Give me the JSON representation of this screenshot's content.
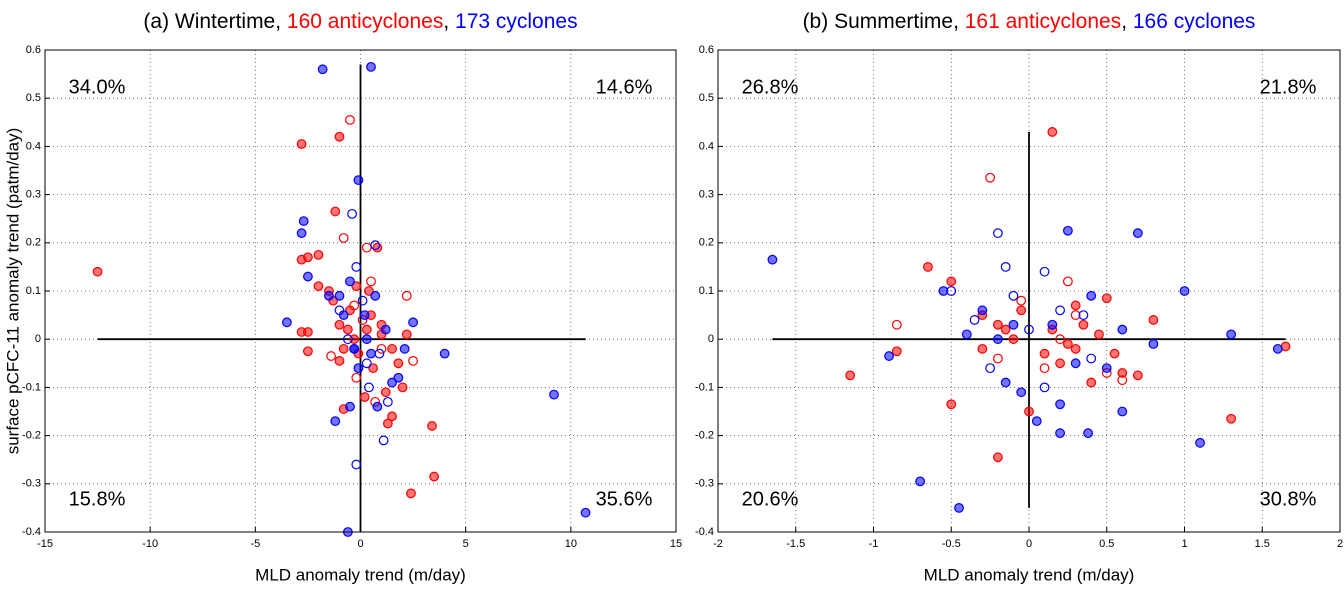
{
  "chart_data": [
    {
      "type": "scatter",
      "title": [
        {
          "text": "(a) Wintertime, ",
          "color": "#000000"
        },
        {
          "text": "160 anticyclones",
          "color": "#ff0000"
        },
        {
          "text": ", ",
          "color": "#000000"
        },
        {
          "text": "173 cyclones",
          "color": "#0000ff"
        }
      ],
      "x_label": "MLD anomaly trend (m/day)",
      "y_label": "surface pCFC-11 anomaly trend (patm/day)",
      "xlim": [
        -15,
        15
      ],
      "xticks": [
        -15,
        -10,
        -5,
        0,
        5,
        10,
        15
      ],
      "ylim": [
        -0.4,
        0.6
      ],
      "yticks": [
        -0.4,
        -0.3,
        -0.2,
        -0.1,
        0,
        0.1,
        0.2,
        0.3,
        0.4,
        0.5,
        0.6
      ],
      "grid": true,
      "cross_x": [
        -12.5,
        10.7
      ],
      "cross_y": [
        -0.4,
        0.57
      ],
      "annotations": [
        {
          "text": "34.0%",
          "position": "top-left"
        },
        {
          "text": "14.6%",
          "position": "top-right"
        },
        {
          "text": "15.8%",
          "position": "bottom-left"
        },
        {
          "text": "35.6%",
          "position": "bottom-right"
        }
      ],
      "series": [
        {
          "color": "#ff0000",
          "filled": true,
          "x": [
            -12.5,
            -1,
            -2.8,
            -1.2,
            -2.5,
            -2.8,
            -2,
            -2,
            -1.5,
            -1.3,
            -2.5,
            -2.8,
            -2.5,
            -1,
            -0.5,
            -0.8,
            -1,
            -0.8,
            -0.3,
            0.3,
            0.5,
            0.8,
            1,
            1.5,
            1.8,
            1.2,
            1.5,
            1.3,
            2.4,
            3.4,
            3.5,
            2,
            0.2,
            -0.2,
            0.6,
            1,
            -0.6,
            0.4,
            -0.1,
            2.2
          ],
          "values": [
            0.14,
            0.42,
            0.405,
            0.265,
            0.17,
            0.165,
            0.175,
            0.11,
            0.1,
            0.08,
            0.015,
            0.015,
            -0.025,
            0.03,
            0.06,
            -0.02,
            -0.045,
            -0.145,
            0,
            0.02,
            0.05,
            0.19,
            0.03,
            -0.02,
            -0.05,
            -0.11,
            -0.16,
            -0.175,
            -0.32,
            -0.18,
            -0.285,
            -0.1,
            -0.12,
            0.11,
            -0.06,
            0.01,
            0.02,
            0.1,
            -0.03,
            0.01
          ]
        },
        {
          "color": "#ff0000",
          "filled": false,
          "x": [
            -0.5,
            -0.8,
            0.3,
            2.2,
            -1.4,
            2.5,
            0.5,
            -0.3,
            0.7,
            1,
            -0.2,
            0.1
          ],
          "values": [
            0.455,
            0.21,
            0.19,
            0.09,
            -0.035,
            -0.045,
            0.12,
            0.07,
            -0.13,
            -0.02,
            -0.08,
            0.04
          ]
        },
        {
          "color": "#0000ff",
          "filled": true,
          "x": [
            -1.8,
            0.5,
            -0.1,
            -2.7,
            -2.8,
            -2.5,
            -3.5,
            -1.5,
            -1,
            -0.5,
            0.2,
            -0.3,
            0.5,
            1.2,
            2.5,
            2.1,
            4,
            1.8,
            -1.2,
            -0.5,
            0.8,
            9.2,
            10.7,
            -0.6,
            -0.3,
            0.3,
            -0.8,
            1.5,
            0.7,
            -0.1
          ],
          "values": [
            0.56,
            0.565,
            0.33,
            0.245,
            0.22,
            0.13,
            0.035,
            0.09,
            0.09,
            0.12,
            0.05,
            -0.02,
            -0.03,
            0.02,
            0.035,
            -0.02,
            -0.03,
            -0.08,
            -0.17,
            -0.14,
            -0.14,
            -0.115,
            -0.36,
            -0.4,
            -0.02,
            0,
            0.05,
            -0.09,
            0.09,
            -0.06
          ]
        },
        {
          "color": "#0000ff",
          "filled": false,
          "x": [
            -0.4,
            0.7,
            -0.2,
            1.1,
            -1,
            0.3,
            0.9,
            -0.6,
            0.1,
            1.3,
            -0.2,
            0.4
          ],
          "values": [
            0.26,
            0.195,
            -0.26,
            -0.21,
            0.06,
            -0.05,
            -0.03,
            0,
            0.08,
            -0.13,
            0.15,
            -0.1
          ]
        }
      ]
    },
    {
      "type": "scatter",
      "title": [
        {
          "text": "(b) Summertime, ",
          "color": "#000000"
        },
        {
          "text": "161 anticyclones",
          "color": "#ff0000"
        },
        {
          "text": ", ",
          "color": "#000000"
        },
        {
          "text": "166 cyclones",
          "color": "#0000ff"
        }
      ],
      "x_label": "MLD anomaly trend (m/day)",
      "xlim": [
        -2,
        2
      ],
      "xticks": [
        -2,
        -1.5,
        -1,
        -0.5,
        0,
        0.5,
        1,
        1.5,
        2
      ],
      "ylim": [
        -0.4,
        0.6
      ],
      "yticks": [
        -0.4,
        -0.3,
        -0.2,
        -0.1,
        0,
        0.1,
        0.2,
        0.3,
        0.4,
        0.5,
        0.6
      ],
      "grid": true,
      "cross_x": [
        -1.65,
        1.65
      ],
      "cross_y": [
        -0.35,
        0.43
      ],
      "annotations": [
        {
          "text": "26.8%",
          "position": "top-left"
        },
        {
          "text": "21.8%",
          "position": "top-right"
        },
        {
          "text": "20.6%",
          "position": "bottom-left"
        },
        {
          "text": "30.8%",
          "position": "bottom-right"
        }
      ],
      "series": [
        {
          "color": "#ff0000",
          "filled": true,
          "x": [
            0.15,
            -0.5,
            -0.65,
            -1.15,
            -0.85,
            -0.5,
            -0.2,
            1.3,
            1.65,
            0.5,
            0.3,
            -0.3,
            -0.2,
            0.1,
            0.2,
            0.4,
            0.6,
            0.7,
            0.8,
            0.3,
            -0.1,
            0,
            -0.3,
            0.15,
            -0.15,
            0.45,
            -0.05,
            0.25,
            0.35,
            0.55
          ],
          "values": [
            0.43,
            0.12,
            0.15,
            -0.075,
            -0.025,
            -0.135,
            -0.245,
            -0.165,
            -0.015,
            0.085,
            0.07,
            0.05,
            0.03,
            -0.03,
            -0.05,
            -0.09,
            -0.07,
            -0.075,
            0.04,
            -0.02,
            0,
            -0.15,
            -0.02,
            0.02,
            0.02,
            0.01,
            0.06,
            -0.01,
            0.03,
            -0.03
          ]
        },
        {
          "color": "#ff0000",
          "filled": false,
          "x": [
            -0.85,
            -0.25,
            0.25,
            0.5,
            0.6,
            -0.05,
            0.1,
            0.3,
            -0.2,
            0.2
          ],
          "values": [
            0.03,
            0.335,
            0.12,
            -0.07,
            -0.085,
            0.08,
            -0.06,
            0.05,
            -0.04,
            0
          ]
        },
        {
          "color": "#0000ff",
          "filled": true,
          "x": [
            -1.65,
            -0.55,
            -0.9,
            -0.7,
            -0.45,
            0.25,
            0.7,
            1,
            1.3,
            1.6,
            1.1,
            0.6,
            0.38,
            0.2,
            0.05,
            -0.15,
            -0.3,
            -0.4,
            0.4,
            0.5,
            0.8,
            0.2,
            -0.05,
            0.15,
            -0.1,
            0.3,
            -0.2,
            0.6
          ],
          "values": [
            0.165,
            0.1,
            -0.035,
            -0.295,
            -0.35,
            0.225,
            0.22,
            0.1,
            0.01,
            -0.02,
            -0.215,
            -0.15,
            -0.195,
            -0.195,
            -0.17,
            -0.09,
            0.06,
            0.01,
            0.09,
            -0.06,
            -0.01,
            -0.135,
            -0.11,
            0.03,
            0.03,
            -0.05,
            0,
            0.02
          ]
        },
        {
          "color": "#0000ff",
          "filled": false,
          "x": [
            -0.2,
            -0.15,
            0.1,
            -0.1,
            -0.5,
            0.35,
            -0.25,
            0,
            0.1,
            0.4,
            -0.35,
            0.2
          ],
          "values": [
            0.22,
            0.15,
            0.14,
            0.09,
            0.1,
            0.05,
            -0.06,
            0.02,
            -0.1,
            -0.04,
            0.04,
            0.06
          ]
        }
      ]
    }
  ]
}
